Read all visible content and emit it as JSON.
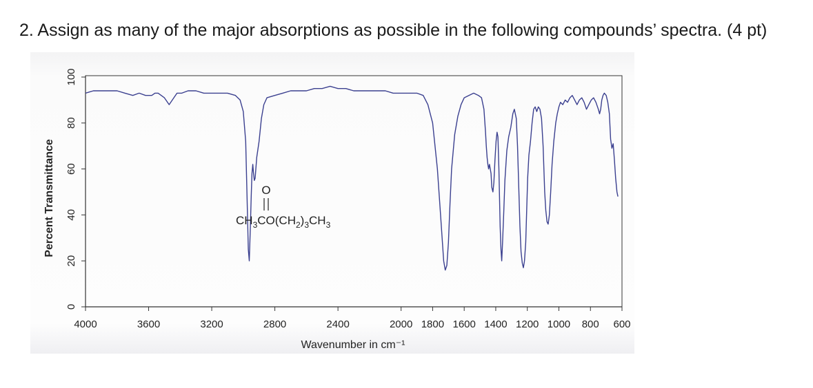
{
  "question": "2. Assign as many of the major absorptions as possible in the following compounds’ spectra. (4 pt)",
  "chart_data": {
    "type": "line",
    "xlabel": "Wavenumber in cm⁻¹",
    "ylabel": "Percent Transmittance",
    "xlim": [
      4000,
      600
    ],
    "ylim": [
      0,
      100
    ],
    "x_reversed": true,
    "x_ticks": [
      "4000",
      "3600",
      "3200",
      "2800",
      "2400",
      "2000",
      "1800",
      "1600",
      "1400",
      "1200",
      "1000",
      "800",
      "600"
    ],
    "y_ticks": [
      "0",
      "20",
      "40",
      "60",
      "80",
      "100"
    ],
    "grid": false,
    "color": "#3a3f8f",
    "annotation": {
      "oxygen": "O",
      "formula_main": "CH",
      "sub1": "3",
      "part2": "CO(CH",
      "sub2": "2",
      "part3": ")",
      "sub3": "3",
      "part4": "CH",
      "sub4": "3"
    },
    "series": [
      {
        "points": [
          [
            4000,
            93
          ],
          [
            3950,
            94
          ],
          [
            3900,
            94
          ],
          [
            3850,
            94
          ],
          [
            3800,
            94
          ],
          [
            3750,
            93
          ],
          [
            3700,
            92
          ],
          [
            3660,
            93
          ],
          [
            3620,
            92
          ],
          [
            3580,
            92
          ],
          [
            3560,
            93
          ],
          [
            3540,
            93
          ],
          [
            3500,
            91
          ],
          [
            3470,
            88
          ],
          [
            3440,
            91
          ],
          [
            3420,
            93
          ],
          [
            3390,
            93
          ],
          [
            3350,
            94
          ],
          [
            3300,
            94
          ],
          [
            3250,
            93
          ],
          [
            3200,
            93
          ],
          [
            3150,
            93
          ],
          [
            3100,
            93
          ],
          [
            3050,
            92
          ],
          [
            3020,
            90
          ],
          [
            3000,
            85
          ],
          [
            2985,
            72
          ],
          [
            2975,
            45
          ],
          [
            2968,
            25
          ],
          [
            2962,
            20
          ],
          [
            2955,
            35
          ],
          [
            2950,
            48
          ],
          [
            2945,
            58
          ],
          [
            2940,
            62
          ],
          [
            2935,
            58
          ],
          [
            2930,
            55
          ],
          [
            2925,
            56
          ],
          [
            2915,
            65
          ],
          [
            2900,
            72
          ],
          [
            2885,
            82
          ],
          [
            2870,
            88
          ],
          [
            2850,
            91
          ],
          [
            2800,
            92
          ],
          [
            2750,
            93
          ],
          [
            2700,
            94
          ],
          [
            2650,
            94
          ],
          [
            2600,
            94
          ],
          [
            2550,
            95
          ],
          [
            2500,
            95
          ],
          [
            2450,
            96
          ],
          [
            2400,
            95
          ],
          [
            2350,
            95
          ],
          [
            2300,
            94
          ],
          [
            2250,
            94
          ],
          [
            2200,
            94
          ],
          [
            2150,
            94
          ],
          [
            2100,
            94
          ],
          [
            2050,
            93
          ],
          [
            2000,
            93
          ],
          [
            1950,
            93
          ],
          [
            1900,
            93
          ],
          [
            1860,
            92
          ],
          [
            1830,
            88
          ],
          [
            1800,
            80
          ],
          [
            1770,
            60
          ],
          [
            1750,
            40
          ],
          [
            1730,
            20
          ],
          [
            1720,
            16
          ],
          [
            1710,
            18
          ],
          [
            1700,
            28
          ],
          [
            1690,
            45
          ],
          [
            1680,
            60
          ],
          [
            1660,
            75
          ],
          [
            1640,
            83
          ],
          [
            1620,
            88
          ],
          [
            1600,
            91
          ],
          [
            1570,
            92
          ],
          [
            1540,
            93
          ],
          [
            1510,
            92
          ],
          [
            1490,
            91
          ],
          [
            1475,
            86
          ],
          [
            1465,
            76
          ],
          [
            1460,
            70
          ],
          [
            1455,
            65
          ],
          [
            1450,
            62
          ],
          [
            1445,
            60
          ],
          [
            1440,
            62
          ],
          [
            1430,
            58
          ],
          [
            1425,
            52
          ],
          [
            1418,
            50
          ],
          [
            1412,
            54
          ],
          [
            1405,
            64
          ],
          [
            1398,
            72
          ],
          [
            1392,
            76
          ],
          [
            1386,
            74
          ],
          [
            1380,
            60
          ],
          [
            1372,
            35
          ],
          [
            1367,
            25
          ],
          [
            1362,
            20
          ],
          [
            1357,
            28
          ],
          [
            1350,
            40
          ],
          [
            1342,
            55
          ],
          [
            1330,
            68
          ],
          [
            1318,
            74
          ],
          [
            1305,
            78
          ],
          [
            1292,
            84
          ],
          [
            1282,
            86
          ],
          [
            1270,
            82
          ],
          [
            1262,
            70
          ],
          [
            1254,
            52
          ],
          [
            1247,
            35
          ],
          [
            1240,
            24
          ],
          [
            1232,
            19
          ],
          [
            1225,
            17
          ],
          [
            1218,
            20
          ],
          [
            1210,
            28
          ],
          [
            1204,
            42
          ],
          [
            1198,
            56
          ],
          [
            1190,
            66
          ],
          [
            1180,
            72
          ],
          [
            1170,
            80
          ],
          [
            1160,
            86
          ],
          [
            1150,
            87
          ],
          [
            1140,
            85
          ],
          [
            1130,
            87
          ],
          [
            1120,
            86
          ],
          [
            1110,
            82
          ],
          [
            1100,
            70
          ],
          [
            1090,
            50
          ],
          [
            1083,
            42
          ],
          [
            1075,
            37
          ],
          [
            1068,
            36
          ],
          [
            1060,
            40
          ],
          [
            1052,
            50
          ],
          [
            1043,
            62
          ],
          [
            1032,
            72
          ],
          [
            1020,
            80
          ],
          [
            1010,
            84
          ],
          [
            1000,
            87
          ],
          [
            990,
            89
          ],
          [
            975,
            88
          ],
          [
            960,
            90
          ],
          [
            945,
            89
          ],
          [
            930,
            91
          ],
          [
            915,
            92
          ],
          [
            900,
            90
          ],
          [
            885,
            88
          ],
          [
            870,
            90
          ],
          [
            855,
            91
          ],
          [
            840,
            89
          ],
          [
            825,
            86
          ],
          [
            810,
            88
          ],
          [
            795,
            90
          ],
          [
            780,
            91
          ],
          [
            765,
            89
          ],
          [
            750,
            86
          ],
          [
            742,
            84
          ],
          [
            735,
            86
          ],
          [
            728,
            90
          ],
          [
            720,
            92
          ],
          [
            712,
            93
          ],
          [
            700,
            92
          ],
          [
            690,
            89
          ],
          [
            680,
            84
          ],
          [
            672,
            73
          ],
          [
            664,
            69
          ],
          [
            656,
            71
          ],
          [
            648,
            64
          ],
          [
            640,
            56
          ],
          [
            632,
            50
          ],
          [
            626,
            48
          ]
        ]
      }
    ]
  }
}
